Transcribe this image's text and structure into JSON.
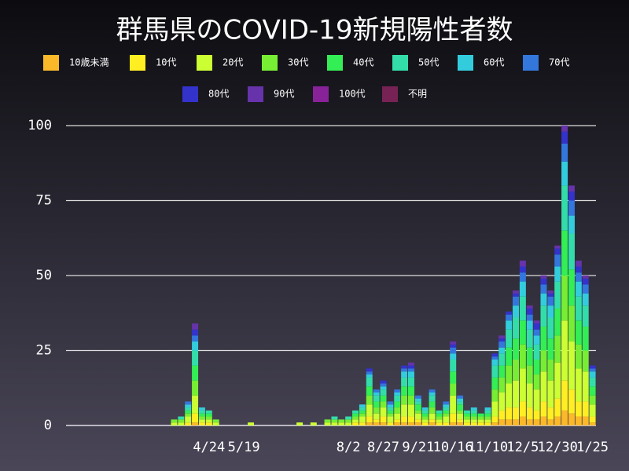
{
  "chart_data": {
    "type": "stacked-bar",
    "title": "群馬県のCOVID-19新規陽性者数",
    "categories": [
      null,
      null,
      null,
      null,
      null,
      null,
      null,
      null,
      null,
      null,
      null,
      null,
      null,
      null,
      null,
      null,
      null,
      null,
      null,
      null,
      "4/24",
      null,
      null,
      null,
      null,
      "5/19",
      null,
      null,
      null,
      null,
      null,
      null,
      null,
      null,
      null,
      null,
      null,
      null,
      null,
      null,
      "8/2",
      null,
      null,
      null,
      null,
      "8/27",
      null,
      null,
      null,
      null,
      "9/21",
      null,
      null,
      null,
      null,
      "10/16",
      null,
      null,
      null,
      null,
      "11/10",
      null,
      null,
      null,
      null,
      "12/5",
      null,
      null,
      null,
      null,
      "12/30",
      null,
      null,
      null,
      null,
      "1/25"
    ],
    "ylim": [
      0,
      100
    ],
    "yticks": [
      0,
      25,
      50,
      75,
      100
    ],
    "grid": true,
    "series": [
      {
        "name": "10歳未満",
        "color": "#fbb829",
        "values": [
          0,
          0,
          0,
          0,
          0,
          0,
          0,
          0,
          0,
          0,
          0,
          0,
          0,
          0,
          0,
          0,
          0,
          0,
          1,
          0,
          0,
          0,
          0,
          0,
          0,
          0,
          0,
          0,
          0,
          0,
          0,
          0,
          0,
          0,
          0,
          0,
          0,
          0,
          0,
          0,
          0,
          0,
          0,
          1,
          1,
          1,
          0,
          1,
          1,
          1,
          1,
          0,
          1,
          0,
          0,
          1,
          1,
          0,
          0,
          0,
          0,
          1,
          2,
          2,
          2,
          3,
          2,
          2,
          3,
          2,
          3,
          5,
          4,
          3,
          3,
          1
        ]
      },
      {
        "name": "10代",
        "color": "#ffee22",
        "values": [
          0,
          0,
          0,
          0,
          0,
          0,
          0,
          0,
          0,
          0,
          0,
          0,
          0,
          0,
          0,
          0,
          0,
          1,
          3,
          1,
          1,
          0,
          0,
          0,
          0,
          0,
          0,
          0,
          0,
          0,
          0,
          0,
          0,
          0,
          0,
          0,
          0,
          0,
          0,
          0,
          0,
          1,
          1,
          2,
          1,
          2,
          1,
          1,
          2,
          2,
          1,
          1,
          1,
          1,
          1,
          3,
          1,
          1,
          1,
          1,
          1,
          2,
          3,
          4,
          4,
          5,
          4,
          3,
          5,
          4,
          6,
          10,
          8,
          5,
          5,
          2
        ]
      },
      {
        "name": "20代",
        "color": "#ccff33",
        "values": [
          0,
          0,
          0,
          0,
          0,
          0,
          0,
          0,
          0,
          0,
          0,
          0,
          0,
          0,
          0,
          1,
          1,
          2,
          6,
          1,
          1,
          1,
          0,
          0,
          0,
          0,
          1,
          0,
          0,
          0,
          0,
          0,
          0,
          1,
          0,
          1,
          0,
          1,
          1,
          1,
          1,
          1,
          2,
          4,
          2,
          3,
          2,
          2,
          4,
          4,
          2,
          1,
          2,
          1,
          2,
          6,
          2,
          1,
          1,
          1,
          1,
          5,
          6,
          8,
          9,
          11,
          8,
          7,
          10,
          9,
          12,
          20,
          16,
          11,
          10,
          4
        ]
      },
      {
        "name": "30代",
        "color": "#77ee33",
        "values": [
          0,
          0,
          0,
          0,
          0,
          0,
          0,
          0,
          0,
          0,
          0,
          0,
          0,
          0,
          0,
          1,
          1,
          1,
          5,
          1,
          1,
          1,
          0,
          0,
          0,
          0,
          0,
          0,
          0,
          0,
          0,
          0,
          0,
          0,
          0,
          0,
          0,
          1,
          1,
          1,
          1,
          1,
          1,
          3,
          2,
          2,
          1,
          2,
          3,
          3,
          1,
          1,
          2,
          1,
          1,
          4,
          1,
          1,
          1,
          1,
          1,
          4,
          5,
          6,
          7,
          8,
          6,
          5,
          7,
          7,
          9,
          15,
          12,
          8,
          7,
          3
        ]
      },
      {
        "name": "40代",
        "color": "#33ee55",
        "values": [
          0,
          0,
          0,
          0,
          0,
          0,
          0,
          0,
          0,
          0,
          0,
          0,
          0,
          0,
          0,
          0,
          0,
          1,
          5,
          1,
          1,
          0,
          0,
          0,
          0,
          0,
          0,
          0,
          0,
          0,
          0,
          0,
          0,
          0,
          0,
          0,
          0,
          0,
          0,
          0,
          0,
          1,
          1,
          3,
          2,
          2,
          1,
          2,
          3,
          3,
          2,
          1,
          2,
          1,
          1,
          4,
          2,
          1,
          1,
          1,
          1,
          4,
          4,
          6,
          7,
          8,
          6,
          5,
          8,
          7,
          9,
          15,
          12,
          8,
          8,
          3
        ]
      },
      {
        "name": "50代",
        "color": "#33ddaa",
        "values": [
          0,
          0,
          0,
          0,
          0,
          0,
          0,
          0,
          0,
          0,
          0,
          0,
          0,
          0,
          0,
          0,
          1,
          1,
          5,
          1,
          1,
          0,
          0,
          0,
          0,
          0,
          0,
          0,
          0,
          0,
          0,
          0,
          0,
          0,
          0,
          0,
          0,
          0,
          1,
          0,
          1,
          1,
          1,
          3,
          2,
          2,
          1,
          2,
          3,
          3,
          1,
          1,
          2,
          1,
          1,
          4,
          1,
          1,
          1,
          0,
          1,
          4,
          4,
          6,
          7,
          8,
          6,
          5,
          7,
          7,
          9,
          15,
          12,
          8,
          7,
          3
        ]
      },
      {
        "name": "60代",
        "color": "#33ccdd",
        "values": [
          0,
          0,
          0,
          0,
          0,
          0,
          0,
          0,
          0,
          0,
          0,
          0,
          0,
          0,
          0,
          0,
          0,
          1,
          3,
          1,
          0,
          0,
          0,
          0,
          0,
          0,
          0,
          0,
          0,
          0,
          0,
          0,
          0,
          0,
          0,
          0,
          0,
          0,
          0,
          0,
          0,
          0,
          1,
          1,
          1,
          1,
          1,
          1,
          2,
          2,
          1,
          1,
          1,
          0,
          1,
          2,
          1,
          0,
          1,
          0,
          1,
          2,
          2,
          3,
          4,
          5,
          3,
          3,
          4,
          4,
          5,
          8,
          6,
          5,
          4,
          2
        ]
      },
      {
        "name": "70代",
        "color": "#3377dd",
        "values": [
          0,
          0,
          0,
          0,
          0,
          0,
          0,
          0,
          0,
          0,
          0,
          0,
          0,
          0,
          0,
          0,
          0,
          1,
          2,
          0,
          0,
          0,
          0,
          0,
          0,
          0,
          0,
          0,
          0,
          0,
          0,
          0,
          0,
          0,
          0,
          0,
          0,
          0,
          0,
          0,
          0,
          0,
          0,
          1,
          1,
          1,
          1,
          1,
          1,
          1,
          1,
          0,
          1,
          0,
          1,
          2,
          1,
          0,
          0,
          0,
          0,
          1,
          2,
          2,
          3,
          3,
          2,
          2,
          3,
          3,
          4,
          6,
          5,
          3,
          3,
          1
        ]
      },
      {
        "name": "80代",
        "color": "#3333cc",
        "values": [
          0,
          0,
          0,
          0,
          0,
          0,
          0,
          0,
          0,
          0,
          0,
          0,
          0,
          0,
          0,
          0,
          0,
          0,
          2,
          0,
          0,
          0,
          0,
          0,
          0,
          0,
          0,
          0,
          0,
          0,
          0,
          0,
          0,
          0,
          0,
          0,
          0,
          0,
          0,
          0,
          0,
          0,
          0,
          1,
          0,
          1,
          0,
          0,
          1,
          1,
          0,
          0,
          0,
          0,
          0,
          1,
          0,
          0,
          0,
          0,
          0,
          1,
          1,
          1,
          1,
          2,
          2,
          2,
          2,
          1,
          2,
          4,
          3,
          2,
          2,
          1
        ]
      },
      {
        "name": "90代",
        "color": "#6633aa",
        "values": [
          0,
          0,
          0,
          0,
          0,
          0,
          0,
          0,
          0,
          0,
          0,
          0,
          0,
          0,
          0,
          0,
          0,
          0,
          2,
          0,
          0,
          0,
          0,
          0,
          0,
          0,
          0,
          0,
          0,
          0,
          0,
          0,
          0,
          0,
          0,
          0,
          0,
          0,
          0,
          0,
          0,
          0,
          0,
          0,
          0,
          0,
          0,
          0,
          0,
          1,
          0,
          0,
          0,
          0,
          0,
          1,
          0,
          0,
          0,
          0,
          0,
          0,
          1,
          0,
          1,
          2,
          1,
          1,
          1,
          1,
          1,
          2,
          2,
          2,
          1,
          0
        ]
      },
      {
        "name": "100代",
        "color": "#882299",
        "values": [
          0,
          0,
          0,
          0,
          0,
          0,
          0,
          0,
          0,
          0,
          0,
          0,
          0,
          0,
          0,
          0,
          0,
          0,
          0,
          0,
          0,
          0,
          0,
          0,
          0,
          0,
          0,
          0,
          0,
          0,
          0,
          0,
          0,
          0,
          0,
          0,
          0,
          0,
          0,
          0,
          0,
          0,
          0,
          0,
          0,
          0,
          0,
          0,
          0,
          0,
          0,
          0,
          0,
          0,
          0,
          0,
          0,
          0,
          0,
          0,
          0,
          0,
          0,
          0,
          0,
          0,
          0,
          0,
          0,
          0,
          0,
          0,
          0,
          0,
          0,
          0
        ]
      },
      {
        "name": "不明",
        "color": "#772255",
        "values": [
          0,
          0,
          0,
          0,
          0,
          0,
          0,
          0,
          0,
          0,
          0,
          0,
          0,
          0,
          0,
          0,
          0,
          0,
          0,
          0,
          0,
          0,
          0,
          0,
          0,
          0,
          0,
          0,
          0,
          0,
          0,
          0,
          0,
          0,
          0,
          0,
          0,
          0,
          0,
          0,
          0,
          0,
          0,
          0,
          0,
          0,
          0,
          0,
          0,
          0,
          0,
          0,
          0,
          0,
          0,
          0,
          0,
          0,
          0,
          0,
          0,
          0,
          0,
          0,
          0,
          0,
          0,
          0,
          0,
          0,
          0,
          0,
          0,
          0,
          0,
          0
        ]
      }
    ]
  }
}
